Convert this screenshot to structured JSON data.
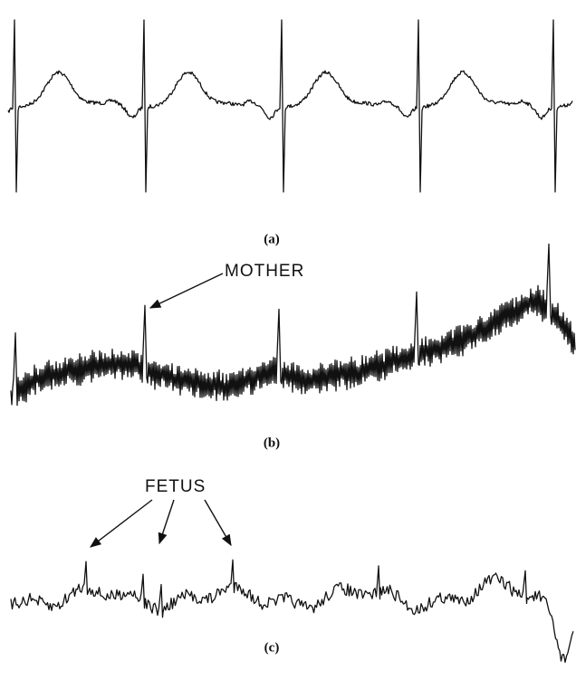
{
  "panels": [
    {
      "label": "(a)"
    },
    {
      "label": "(b)",
      "annotation": "MOTHER"
    },
    {
      "label": "(c)",
      "annotation": "FETUS"
    }
  ]
}
